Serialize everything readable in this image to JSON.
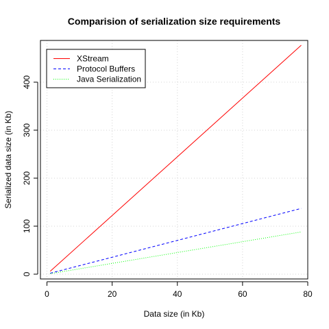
{
  "chart_data": {
    "type": "line",
    "title": "Comparision of serialization size requirements",
    "xlabel": "Data size (in Kb)",
    "ylabel": "Serialized data size (in Kb)",
    "xlim": [
      -2,
      80
    ],
    "ylim": [
      -10,
      487
    ],
    "x_ticks": [
      0,
      20,
      40,
      60,
      80
    ],
    "y_ticks": [
      0,
      100,
      200,
      300,
      400
    ],
    "grid": true,
    "legend_position": "top-left",
    "series": [
      {
        "name": "XStream",
        "color": "#ff0000",
        "dash": "solid",
        "x": [
          1,
          78
        ],
        "y": [
          6,
          477
        ]
      },
      {
        "name": "Protocol Buffers",
        "color": "#0000ff",
        "dash": "dashed",
        "x": [
          1,
          78
        ],
        "y": [
          2,
          137
        ]
      },
      {
        "name": "Java Serialization",
        "color": "#00ff00",
        "dash": "dotted",
        "x": [
          1,
          78
        ],
        "y": [
          1,
          88
        ]
      }
    ]
  }
}
